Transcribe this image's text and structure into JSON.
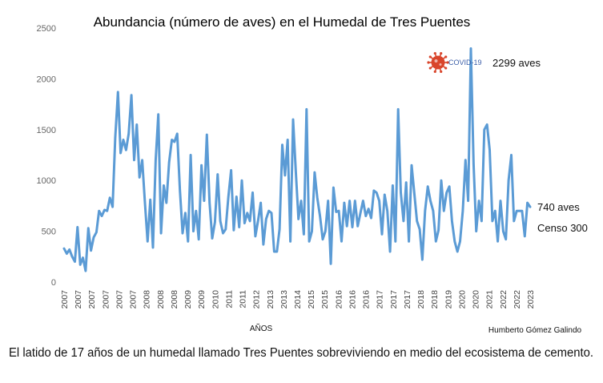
{
  "chart_data": {
    "type": "line",
    "title": "Abundancia (número de aves) en el Humedal de Tres Puentes",
    "xlabel": "AÑOS",
    "ylabel": "",
    "ylim": [
      0,
      2500
    ],
    "yticks": [
      0,
      500,
      1000,
      1500,
      2000,
      2500
    ],
    "xticks": [
      "2007",
      "2007",
      "2007",
      "2007",
      "2007",
      "2007",
      "2008",
      "2008",
      "2008",
      "2009",
      "2009",
      "2010",
      "2011",
      "2011",
      "2012",
      "2013",
      "2013",
      "2014",
      "2015",
      "2015",
      "2016",
      "2016",
      "2016",
      "2017",
      "2017",
      "2017",
      "2018",
      "2018",
      "2019",
      "2020",
      "2020",
      "2021",
      "2022",
      "2022",
      "2023"
    ],
    "series": [
      {
        "color": "#5b9bd5",
        "values": [
          330,
          280,
          320,
          250,
          200,
          540,
          170,
          240,
          110,
          530,
          310,
          440,
          490,
          700,
          650,
          710,
          700,
          830,
          740,
          1420,
          1870,
          1270,
          1400,
          1300,
          1460,
          1840,
          1200,
          1550,
          1030,
          1200,
          790,
          400,
          810,
          340,
          1200,
          1650,
          480,
          950,
          780,
          1180,
          1400,
          1380,
          1460,
          900,
          480,
          680,
          400,
          1250,
          500,
          700,
          420,
          1150,
          800,
          1450,
          780,
          430,
          590,
          1060,
          600,
          480,
          520,
          840,
          1100,
          510,
          840,
          540,
          1000,
          580,
          680,
          600,
          880,
          450,
          600,
          780,
          370,
          620,
          700,
          680,
          300,
          300,
          520,
          1350,
          1050,
          1400,
          400,
          1600,
          1100,
          620,
          800,
          470,
          1700,
          400,
          500,
          1080,
          830,
          650,
          420,
          500,
          800,
          180,
          930,
          690,
          700,
          400,
          780,
          550,
          800,
          540,
          800,
          550,
          680,
          800,
          650,
          720,
          630,
          900,
          880,
          800,
          470,
          860,
          700,
          300,
          950,
          400,
          1700,
          880,
          600,
          980,
          400,
          1150,
          880,
          600,
          520,
          220,
          700,
          940,
          800,
          700,
          400,
          510,
          1000,
          700,
          880,
          940,
          600,
          400,
          300,
          400,
          700,
          1200,
          800,
          2299,
          1160,
          500,
          800,
          600,
          1500,
          1550,
          1300,
          600,
          700,
          400,
          800,
          500,
          420,
          1000,
          1250,
          600,
          700,
          700,
          700,
          450,
          780,
          740
        ]
      }
    ],
    "annotations": {
      "covid": "COVID-19",
      "peak": "2299 aves",
      "last": "740 aves",
      "censo": "Censo 300"
    },
    "grid": false,
    "legend": "none"
  },
  "author": "Humberto Gómez Galindo",
  "caption": "El latido de 17 años de un humedal llamado Tres Puentes  sobreviviendo en medio del ecosistema de cemento.",
  "colors": {
    "line": "#5b9bd5",
    "virus": "#d9452b"
  },
  "icons": {
    "covid": "virus-icon"
  }
}
